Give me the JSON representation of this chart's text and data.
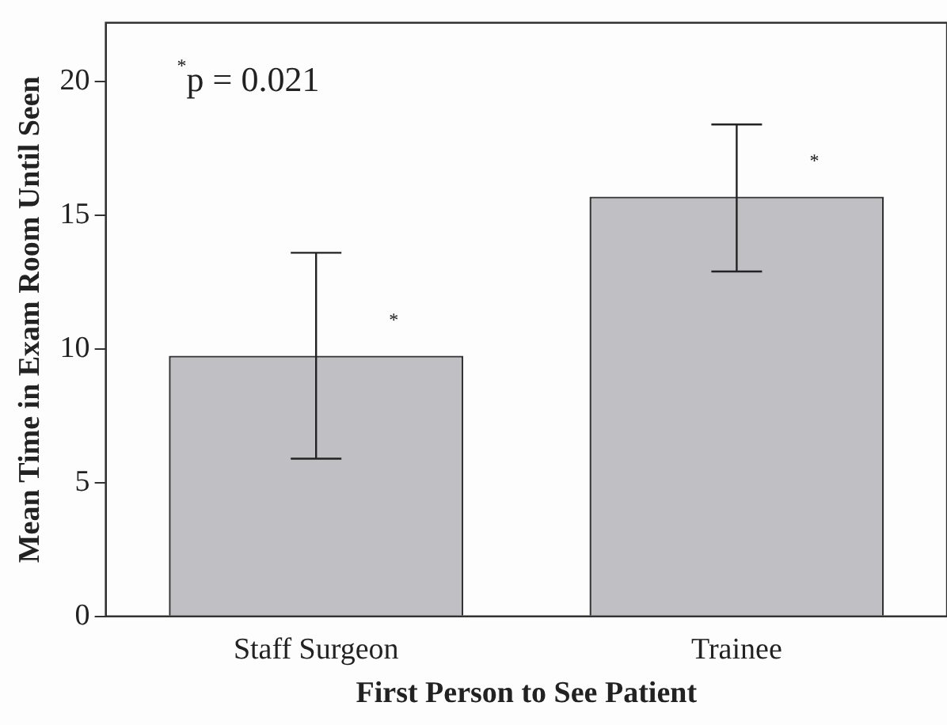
{
  "chart_data": {
    "type": "bar",
    "xlabel": "First Person to See Patient",
    "ylabel": "Mean Time in Exam Room Until Seen",
    "categories": [
      "Staff Surgeon",
      "Trainee"
    ],
    "values": [
      9.75,
      15.7
    ],
    "color": "#c0c0c4",
    "errors": [
      [
        5.9,
        13.6
      ],
      [
        12.9,
        18.4
      ]
    ],
    "ylim": [
      0,
      22.2
    ],
    "yticks": [
      0,
      5,
      10,
      15,
      20
    ],
    "grid": false,
    "legend": false,
    "annotations": [
      "$^{*}$p = 0.021",
      "*",
      "*"
    ]
  }
}
